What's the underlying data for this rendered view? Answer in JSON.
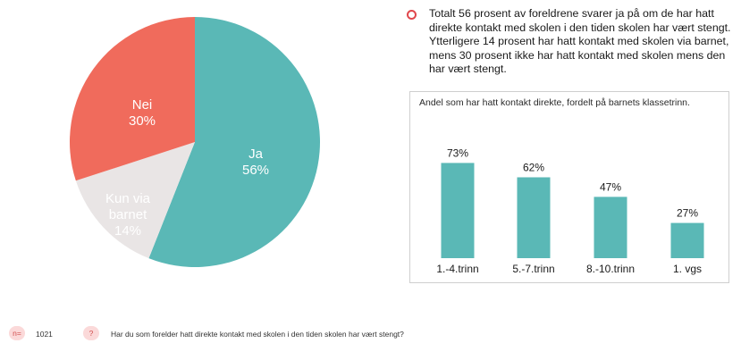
{
  "chart_data": [
    {
      "type": "pie",
      "slices": [
        {
          "label": "Ja",
          "value": 56,
          "value_label": "56%",
          "color": "#5ab8b6"
        },
        {
          "label": "Kun via barnet",
          "value": 14,
          "value_label": "14%",
          "color": "#e9e5e5"
        },
        {
          "label": "Nei",
          "value": 30,
          "value_label": "30%",
          "color": "#f06b5c"
        }
      ]
    },
    {
      "type": "bar",
      "title": "Andel som har hatt kontakt direkte, fordelt på barnets klassetrinn.",
      "categories": [
        "1.-4.trinn",
        "5.-7.trinn",
        "8.-10.trinn",
        "1. vgs"
      ],
      "values": [
        73,
        62,
        47,
        27
      ],
      "value_labels": [
        "73%",
        "62%",
        "47%",
        "27%"
      ],
      "ylim": [
        0,
        100
      ],
      "color": "#5ab8b6"
    }
  ],
  "summary": {
    "text": "Totalt 56 prosent av foreldrene svarer ja på om de har hatt direkte kontakt med skolen i den tiden skolen har vært stengt. Ytterligere 14 prosent har hatt kontakt med skolen via barnet, mens 30  prosent ikke har hatt kontakt med skolen mens den har vært stengt."
  },
  "footer": {
    "n_label": "n=",
    "n_value": "1021",
    "question_icon": "?",
    "question": "Har du som forelder hatt direkte kontakt med skolen i den tiden skolen har vært stengt?"
  }
}
